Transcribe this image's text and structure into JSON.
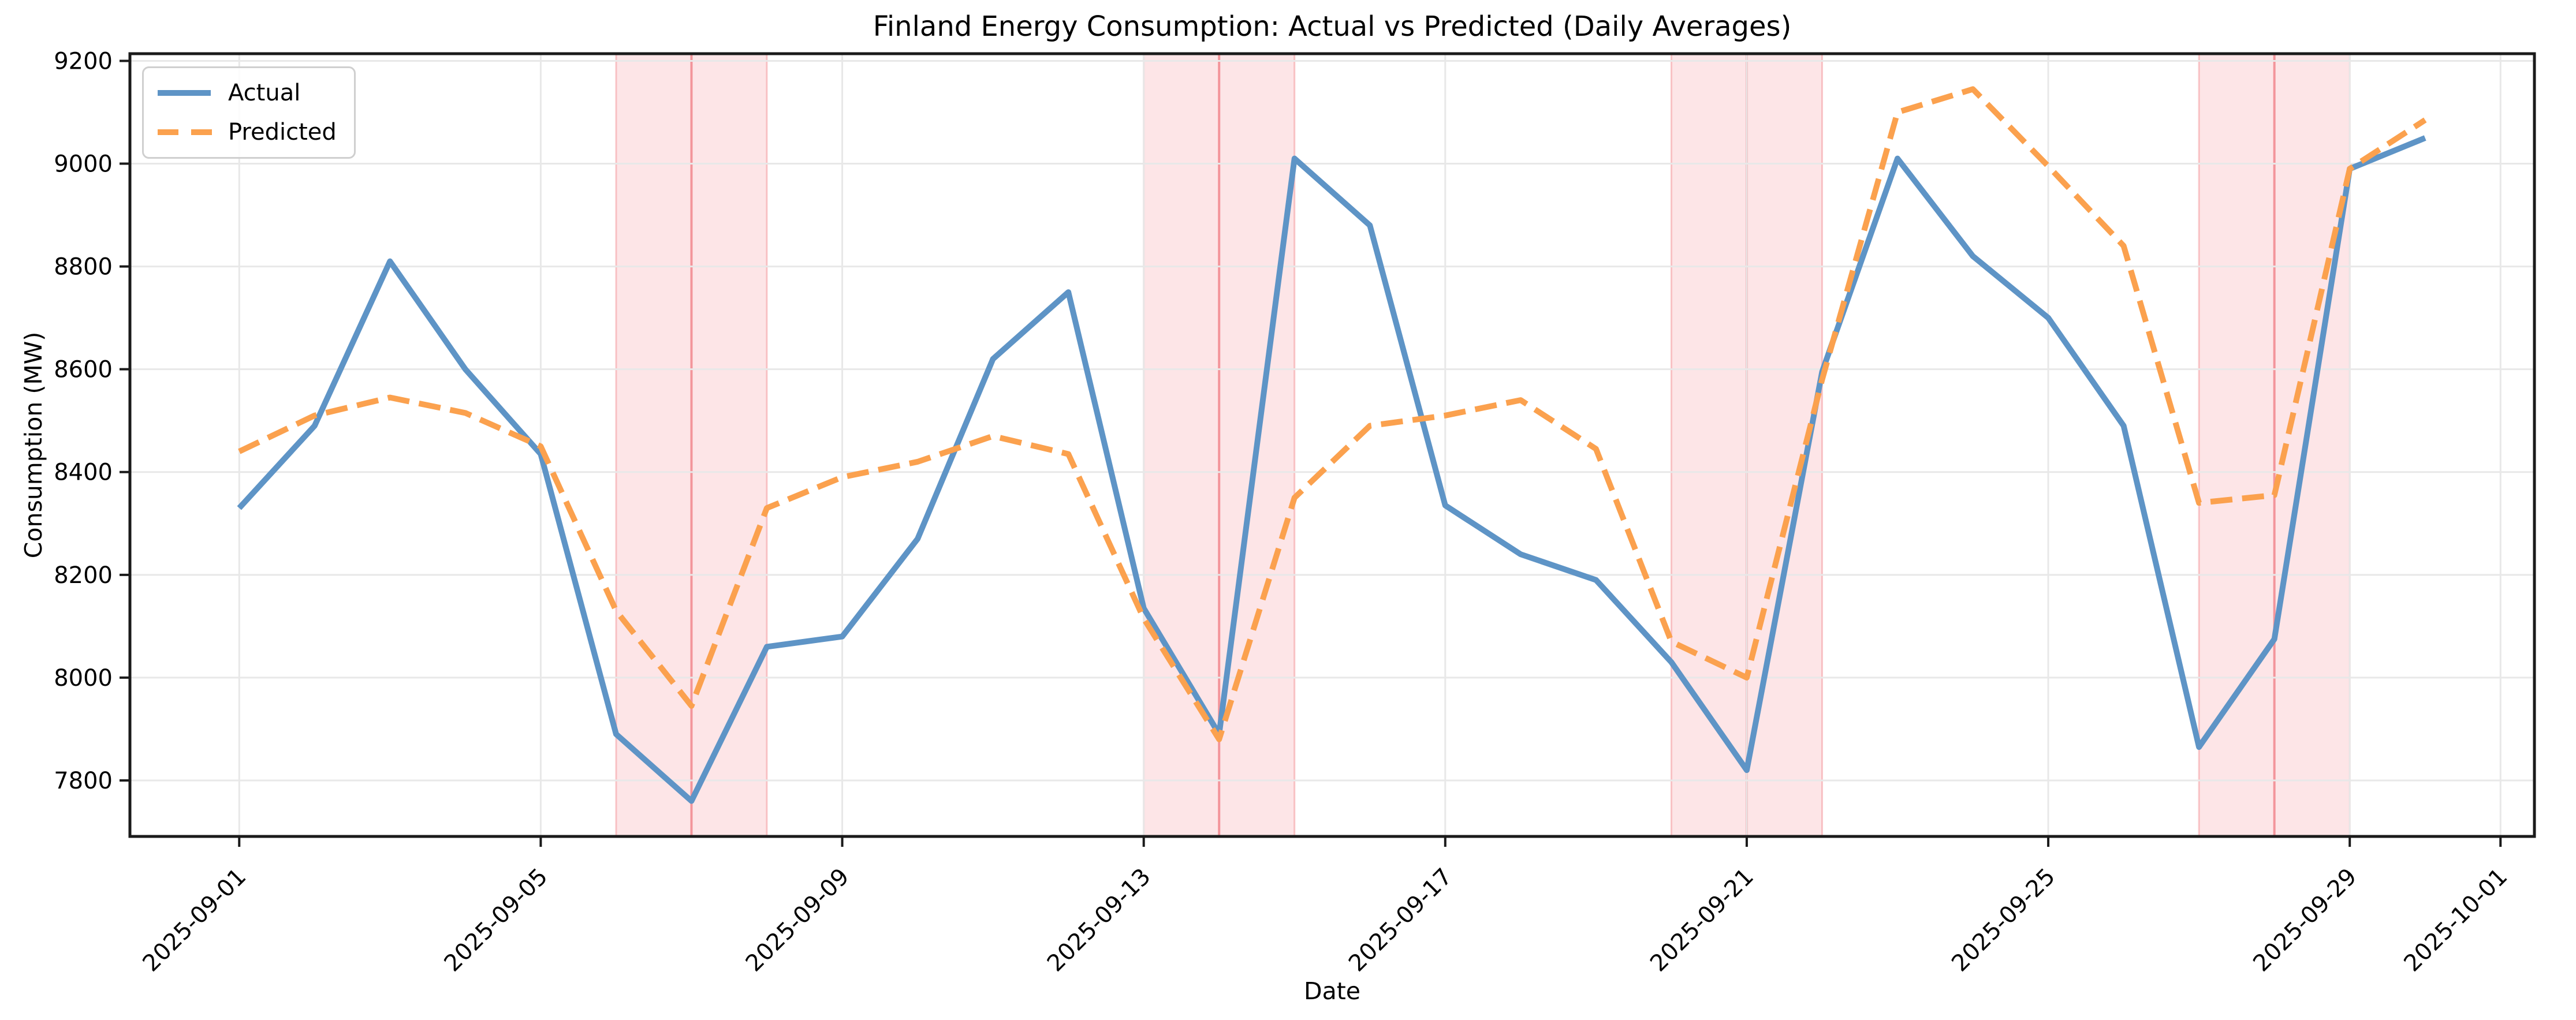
{
  "figure": {
    "title": "Finland Energy Consumption: Actual vs Predicted (Daily Averages)",
    "xlabel": "Date",
    "ylabel": "Consumption (MW)"
  },
  "legend": {
    "position": "upper left",
    "items": [
      {
        "label": "Actual",
        "style": "solid",
        "color": "#5E94C6"
      },
      {
        "label": "Predicted",
        "style": "dashed",
        "color": "#FBA14E"
      }
    ]
  },
  "chart_data": {
    "type": "line",
    "title": "Finland Energy Consumption: Actual vs Predicted (Daily Averages)",
    "xlabel": "Date",
    "ylabel": "Consumption (MW)",
    "grid": true,
    "legend_position": "upper left",
    "x": [
      "2025-09-01",
      "2025-09-02",
      "2025-09-03",
      "2025-09-04",
      "2025-09-05",
      "2025-09-06",
      "2025-09-07",
      "2025-09-08",
      "2025-09-09",
      "2025-09-10",
      "2025-09-11",
      "2025-09-12",
      "2025-09-13",
      "2025-09-14",
      "2025-09-15",
      "2025-09-16",
      "2025-09-17",
      "2025-09-18",
      "2025-09-19",
      "2025-09-20",
      "2025-09-21",
      "2025-09-22",
      "2025-09-23",
      "2025-09-24",
      "2025-09-25",
      "2025-09-26",
      "2025-09-27",
      "2025-09-28",
      "2025-09-29",
      "2025-09-30"
    ],
    "series": [
      {
        "name": "Actual",
        "color": "#5E94C6",
        "style": "solid",
        "values": [
          8330,
          8490,
          8810,
          8600,
          8435,
          7890,
          7760,
          8060,
          8080,
          8270,
          8620,
          8750,
          8135,
          7890,
          9010,
          8880,
          8335,
          8240,
          8190,
          8030,
          7820,
          8595,
          9010,
          8820,
          8700,
          8490,
          7865,
          8075,
          8990,
          9050
        ]
      },
      {
        "name": "Predicted",
        "color": "#FBA14E",
        "style": "dashed",
        "values": [
          8440,
          8510,
          8545,
          8515,
          8450,
          8130,
          7945,
          8330,
          8390,
          8420,
          8470,
          8435,
          8115,
          7880,
          8350,
          8490,
          8510,
          8540,
          8445,
          8070,
          8000,
          8580,
          9100,
          9145,
          8995,
          8840,
          8340,
          8355,
          8990,
          9085
        ]
      }
    ],
    "weekend_shading": {
      "fill_color": "rgba(242,95,105,0.16)",
      "edge_color": "rgba(238,115,122,0.38)",
      "seam_color": "rgba(238,115,122,0.70)",
      "bands": [
        {
          "start": "2025-09-06",
          "seam": "2025-09-07",
          "end": "2025-09-08"
        },
        {
          "start": "2025-09-13",
          "seam": "2025-09-14",
          "end": "2025-09-15"
        },
        {
          "start": "2025-09-20",
          "seam": "2025-09-21",
          "end": "2025-09-22"
        },
        {
          "start": "2025-09-27",
          "seam": "2025-09-28",
          "end": "2025-09-29"
        }
      ]
    },
    "x_ticks": [
      "2025-09-01",
      "2025-09-05",
      "2025-09-09",
      "2025-09-13",
      "2025-09-17",
      "2025-09-21",
      "2025-09-25",
      "2025-09-29",
      "2025-10-01"
    ],
    "y_ticks": [
      7800,
      8000,
      8200,
      8400,
      8600,
      8800,
      9000,
      9200
    ],
    "ylim": [
      7691,
      9214
    ],
    "xlim_days": [
      -1.45,
      30.45
    ],
    "x_epoch": "2025-09-01",
    "grid_color": "#e8e8e8",
    "spine_color": "#1a1a1a",
    "tick_label_color": "#000000"
  }
}
